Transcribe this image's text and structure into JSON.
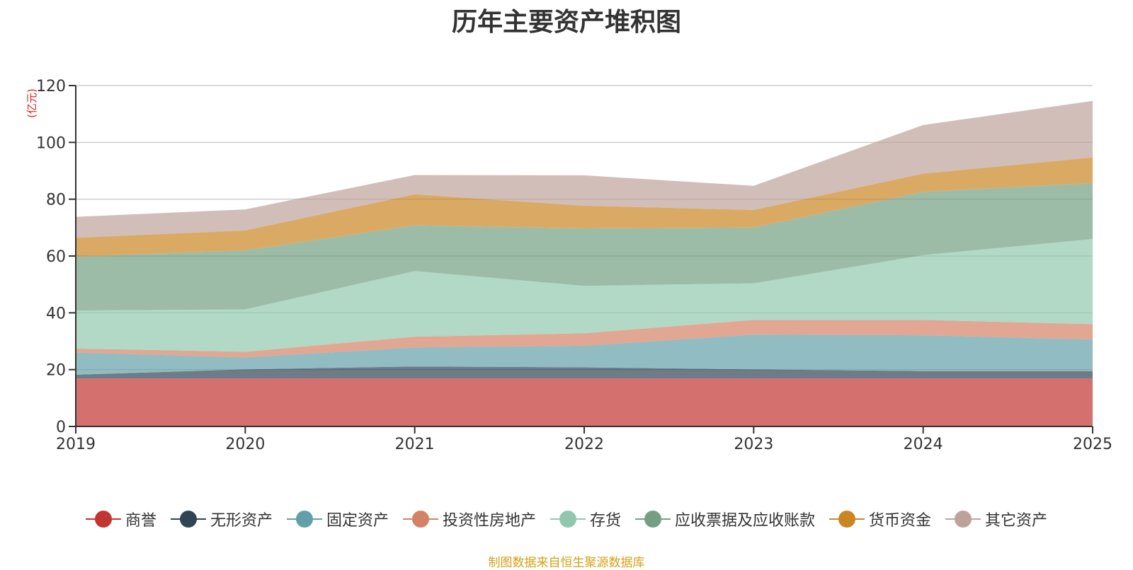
{
  "chart_data": {
    "type": "area",
    "stacked": true,
    "title": "历年主要资产堆积图",
    "ylabel": "(亿元)",
    "xlabel": "",
    "ylim": [
      0,
      120
    ],
    "yticks": [
      0,
      20,
      40,
      60,
      80,
      100,
      120
    ],
    "grid": true,
    "legend_position": "bottom",
    "categories": [
      "2019",
      "2020",
      "2021",
      "2022",
      "2023",
      "2024",
      "2025"
    ],
    "series": [
      {
        "name": "商誉",
        "color": "#c23531",
        "values": [
          16.9,
          16.9,
          16.9,
          16.9,
          16.9,
          16.9,
          16.9
        ]
      },
      {
        "name": "无形资产",
        "color": "#2f4554",
        "values": [
          1.3,
          3.2,
          4.2,
          3.9,
          3.2,
          2.6,
          2.6
        ]
      },
      {
        "name": "固定资产",
        "color": "#61a0a8",
        "values": [
          7.8,
          4.2,
          6.7,
          7.6,
          12.2,
          12.6,
          11.1
        ]
      },
      {
        "name": "投资性房地产",
        "color": "#d48265",
        "values": [
          1.4,
          2.0,
          3.8,
          4.4,
          5.2,
          5.4,
          5.4
        ]
      },
      {
        "name": "存货",
        "color": "#91c7ae",
        "values": [
          13.4,
          14.9,
          23.1,
          16.7,
          12.9,
          22.8,
          30.0
        ]
      },
      {
        "name": "应收票据及应收账款",
        "color": "#749f83",
        "values": [
          19.0,
          20.8,
          16.1,
          20.2,
          19.6,
          22.3,
          19.7
        ]
      },
      {
        "name": "货币资金",
        "color": "#ca8622",
        "values": [
          6.6,
          7.0,
          10.9,
          8.0,
          6.2,
          6.4,
          9.0
        ]
      },
      {
        "name": "其它资产",
        "color": "#bda29a",
        "values": [
          7.4,
          7.4,
          6.8,
          10.7,
          8.5,
          17.1,
          19.9
        ]
      }
    ],
    "source_note": "制图数据来自恒生聚源数据库"
  }
}
